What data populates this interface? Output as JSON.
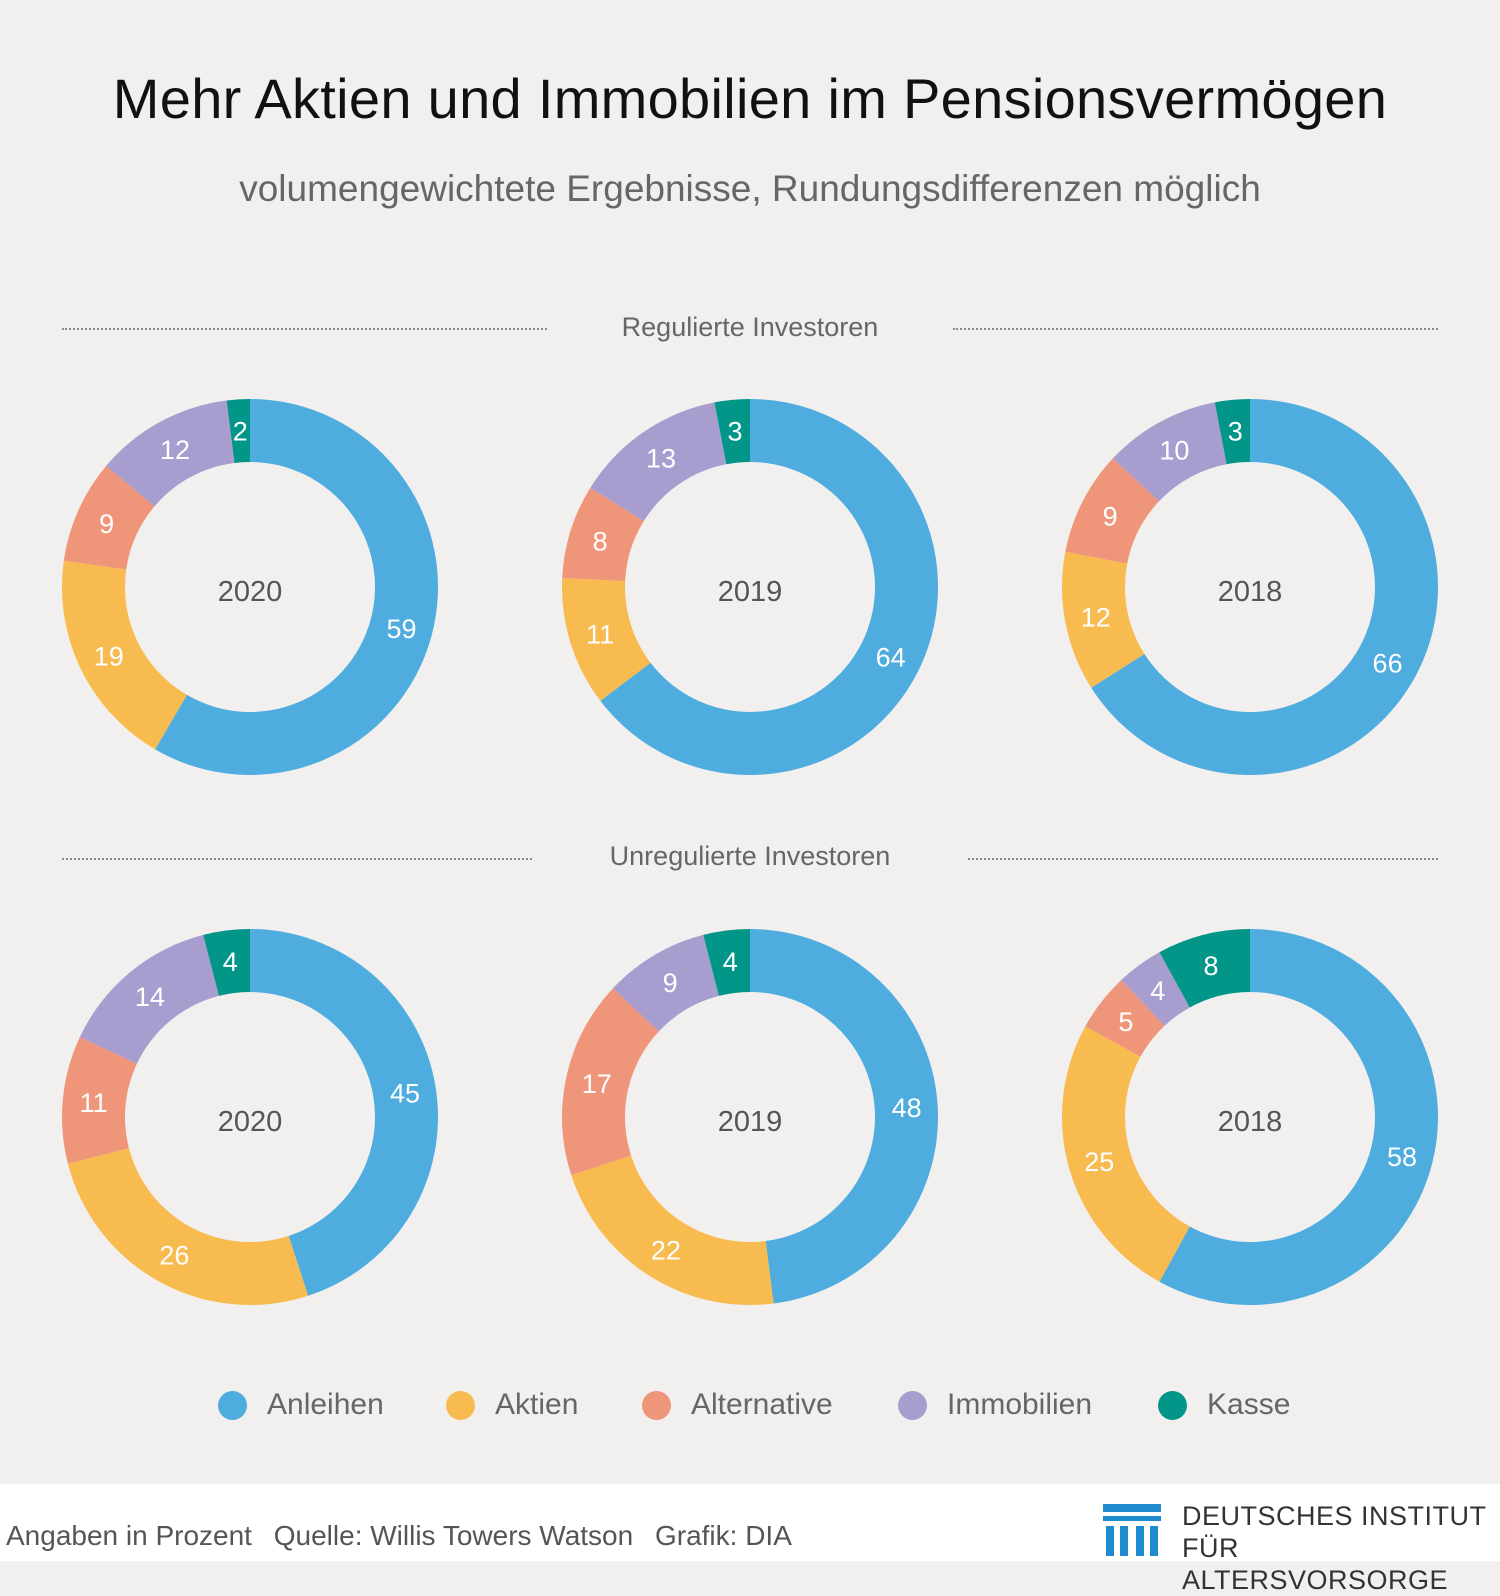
{
  "title": "Mehr Aktien und Immobilien im Pensionsvermögen",
  "subtitle": "volumengewichtete Ergebnisse, Rundungsdifferenzen möglich",
  "sections": [
    {
      "label": "Regulierte Investoren"
    },
    {
      "label": "Unregulierte Investoren"
    }
  ],
  "colors": {
    "Anleihen": "#4facdf",
    "Aktien": "#f8bb50",
    "Alternative": "#ef957a",
    "Immobilien": "#a79dcf",
    "Kasse": "#019688"
  },
  "legend": [
    {
      "label": "Anleihen",
      "color": "#4facdf"
    },
    {
      "label": "Aktien",
      "color": "#f8bb50"
    },
    {
      "label": "Alternative",
      "color": "#ef957a"
    },
    {
      "label": "Immobilien",
      "color": "#a79dcf"
    },
    {
      "label": "Kasse",
      "color": "#019688"
    }
  ],
  "chart_data": [
    {
      "type": "pie",
      "variant": "donut",
      "group": "Regulierte Investoren",
      "center_label": "2020",
      "categories": [
        "Anleihen",
        "Aktien",
        "Alternative",
        "Immobilien",
        "Kasse"
      ],
      "values": [
        59,
        19,
        9,
        12,
        2
      ]
    },
    {
      "type": "pie",
      "variant": "donut",
      "group": "Regulierte Investoren",
      "center_label": "2019",
      "categories": [
        "Anleihen",
        "Aktien",
        "Alternative",
        "Immobilien",
        "Kasse"
      ],
      "values": [
        64,
        11,
        8,
        13,
        3
      ]
    },
    {
      "type": "pie",
      "variant": "donut",
      "group": "Regulierte Investoren",
      "center_label": "2018",
      "categories": [
        "Anleihen",
        "Aktien",
        "Alternative",
        "Immobilien",
        "Kasse"
      ],
      "values": [
        66,
        12,
        9,
        10,
        3
      ]
    },
    {
      "type": "pie",
      "variant": "donut",
      "group": "Unregulierte Investoren",
      "center_label": "2020",
      "categories": [
        "Anleihen",
        "Aktien",
        "Alternative",
        "Immobilien",
        "Kasse"
      ],
      "values": [
        45,
        26,
        11,
        14,
        4
      ]
    },
    {
      "type": "pie",
      "variant": "donut",
      "group": "Unregulierte Investoren",
      "center_label": "2019",
      "categories": [
        "Anleihen",
        "Aktien",
        "Alternative",
        "Immobilien",
        "Kasse"
      ],
      "values": [
        48,
        22,
        17,
        9,
        4
      ]
    },
    {
      "type": "pie",
      "variant": "donut",
      "group": "Unregulierte Investoren",
      "center_label": "2018",
      "categories": [
        "Anleihen",
        "Aktien",
        "Alternative",
        "Immobilien",
        "Kasse"
      ],
      "values": [
        58,
        25,
        5,
        4,
        8
      ]
    }
  ],
  "footer": {
    "unit_note": "Angaben in Prozent",
    "source": "Quelle: Willis Towers Watson",
    "credit": "Grafik: DIA"
  },
  "logo": {
    "line1": "DEUTSCHES INSTITUT",
    "line2": "FÜR ALTERSVORSORGE",
    "color": "#1f8ccf"
  }
}
